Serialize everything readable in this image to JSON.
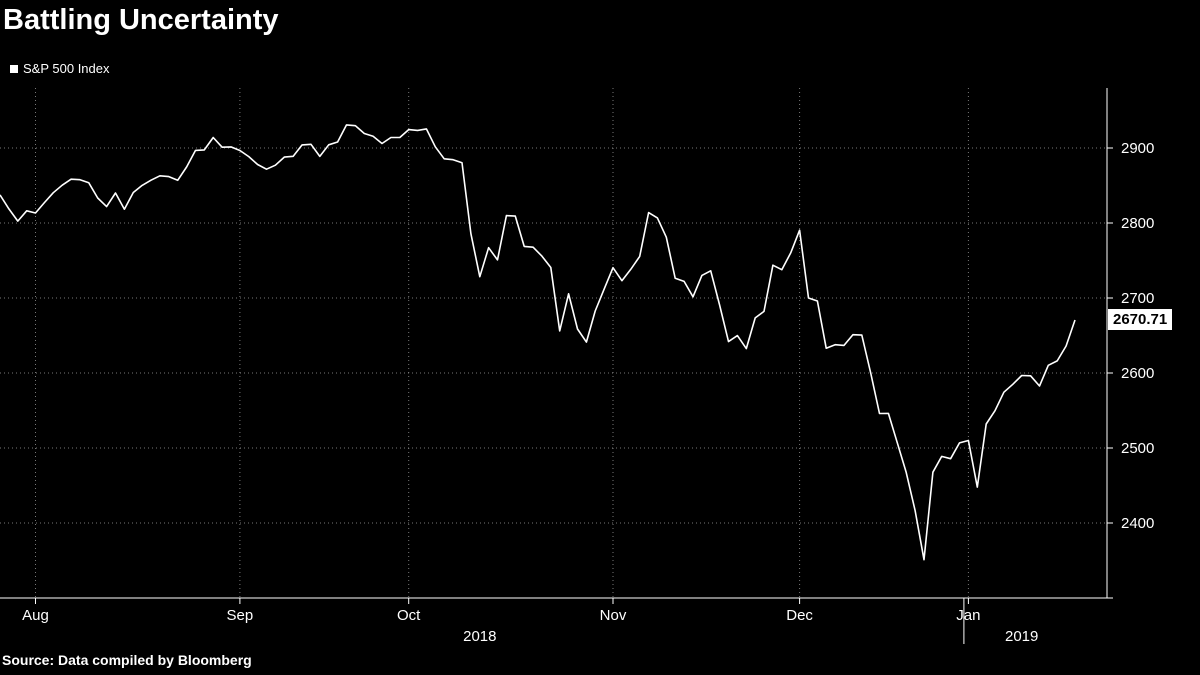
{
  "chart_data": {
    "type": "line",
    "title": "Battling Uncertainty",
    "legend": [
      "S&P 500 Index"
    ],
    "legend_position": "top-left",
    "source_note": "Source: Data compiled by Bloomberg",
    "x_tick_labels": [
      "Aug",
      "Sep",
      "Oct",
      "Nov",
      "Dec",
      "Jan"
    ],
    "year_labels": [
      "2018",
      "2019"
    ],
    "yticks": [
      2400,
      2500,
      2600,
      2700,
      2800,
      2900
    ],
    "ylim": [
      2300,
      2980
    ],
    "axis_side": "right",
    "grid": "dotted",
    "last_value_label": "2670.71",
    "colors": {
      "background": "#000000",
      "line": "#ffffff",
      "text": "#ffffff",
      "grid": "#a0a0a0",
      "last_value_bg": "#ffffff",
      "last_value_text": "#000000"
    },
    "series": [
      {
        "name": "S&P 500 Index",
        "dates": [
          "2018-07-26",
          "2018-07-27",
          "2018-07-30",
          "2018-07-31",
          "2018-08-01",
          "2018-08-02",
          "2018-08-03",
          "2018-08-06",
          "2018-08-07",
          "2018-08-08",
          "2018-08-09",
          "2018-08-10",
          "2018-08-13",
          "2018-08-14",
          "2018-08-15",
          "2018-08-16",
          "2018-08-17",
          "2018-08-20",
          "2018-08-21",
          "2018-08-22",
          "2018-08-23",
          "2018-08-24",
          "2018-08-27",
          "2018-08-28",
          "2018-08-29",
          "2018-08-30",
          "2018-08-31",
          "2018-09-04",
          "2018-09-05",
          "2018-09-06",
          "2018-09-07",
          "2018-09-10",
          "2018-09-11",
          "2018-09-12",
          "2018-09-13",
          "2018-09-14",
          "2018-09-17",
          "2018-09-18",
          "2018-09-19",
          "2018-09-20",
          "2018-09-21",
          "2018-09-24",
          "2018-09-25",
          "2018-09-26",
          "2018-09-27",
          "2018-09-28",
          "2018-10-01",
          "2018-10-02",
          "2018-10-03",
          "2018-10-04",
          "2018-10-05",
          "2018-10-08",
          "2018-10-09",
          "2018-10-10",
          "2018-10-11",
          "2018-10-12",
          "2018-10-15",
          "2018-10-16",
          "2018-10-17",
          "2018-10-18",
          "2018-10-19",
          "2018-10-22",
          "2018-10-23",
          "2018-10-24",
          "2018-10-25",
          "2018-10-26",
          "2018-10-29",
          "2018-10-30",
          "2018-10-31",
          "2018-11-01",
          "2018-11-02",
          "2018-11-05",
          "2018-11-06",
          "2018-11-07",
          "2018-11-08",
          "2018-11-09",
          "2018-11-12",
          "2018-11-13",
          "2018-11-14",
          "2018-11-15",
          "2018-11-16",
          "2018-11-19",
          "2018-11-20",
          "2018-11-21",
          "2018-11-23",
          "2018-11-26",
          "2018-11-27",
          "2018-11-28",
          "2018-11-29",
          "2018-11-30",
          "2018-12-03",
          "2018-12-04",
          "2018-12-06",
          "2018-12-07",
          "2018-12-10",
          "2018-12-11",
          "2018-12-12",
          "2018-12-13",
          "2018-12-14",
          "2018-12-17",
          "2018-12-18",
          "2018-12-19",
          "2018-12-20",
          "2018-12-21",
          "2018-12-24",
          "2018-12-26",
          "2018-12-27",
          "2018-12-28",
          "2018-12-31",
          "2019-01-02",
          "2019-01-03",
          "2019-01-04",
          "2019-01-07",
          "2019-01-08",
          "2019-01-09",
          "2019-01-10",
          "2019-01-11",
          "2019-01-14",
          "2019-01-15",
          "2019-01-16",
          "2019-01-17",
          "2019-01-18"
        ],
        "values": [
          2837.44,
          2818.82,
          2802.6,
          2816.29,
          2813.36,
          2827.22,
          2840.35,
          2850.4,
          2858.45,
          2857.7,
          2853.58,
          2833.28,
          2821.93,
          2839.96,
          2818.37,
          2840.69,
          2850.13,
          2857.05,
          2862.96,
          2861.82,
          2856.98,
          2874.69,
          2896.74,
          2897.52,
          2914.04,
          2901.13,
          2901.52,
          2896.72,
          2888.6,
          2878.05,
          2871.68,
          2877.13,
          2887.89,
          2888.92,
          2904.18,
          2904.98,
          2888.8,
          2904.31,
          2907.95,
          2930.75,
          2929.67,
          2919.37,
          2915.56,
          2905.97,
          2914.0,
          2913.98,
          2924.59,
          2923.43,
          2925.51,
          2901.61,
          2885.57,
          2884.43,
          2880.34,
          2785.68,
          2728.37,
          2767.13,
          2750.79,
          2809.92,
          2809.21,
          2768.78,
          2767.78,
          2755.88,
          2740.69,
          2656.1,
          2705.57,
          2658.69,
          2641.25,
          2682.63,
          2711.74,
          2740.37,
          2723.06,
          2738.31,
          2755.45,
          2813.89,
          2806.83,
          2781.01,
          2726.22,
          2722.18,
          2701.58,
          2730.2,
          2736.27,
          2690.73,
          2641.89,
          2649.93,
          2632.56,
          2673.45,
          2682.17,
          2743.79,
          2737.76,
          2760.17,
          2790.37,
          2700.06,
          2695.95,
          2633.08,
          2637.72,
          2636.78,
          2651.07,
          2650.54,
          2599.95,
          2545.94,
          2546.16,
          2506.96,
          2467.42,
          2416.62,
          2351.1,
          2467.7,
          2488.83,
          2485.74,
          2506.85,
          2510.03,
          2447.89,
          2531.94,
          2549.69,
          2574.41,
          2584.96,
          2596.64,
          2596.26,
          2582.61,
          2610.3,
          2616.1,
          2635.96,
          2670.71
        ]
      }
    ]
  }
}
